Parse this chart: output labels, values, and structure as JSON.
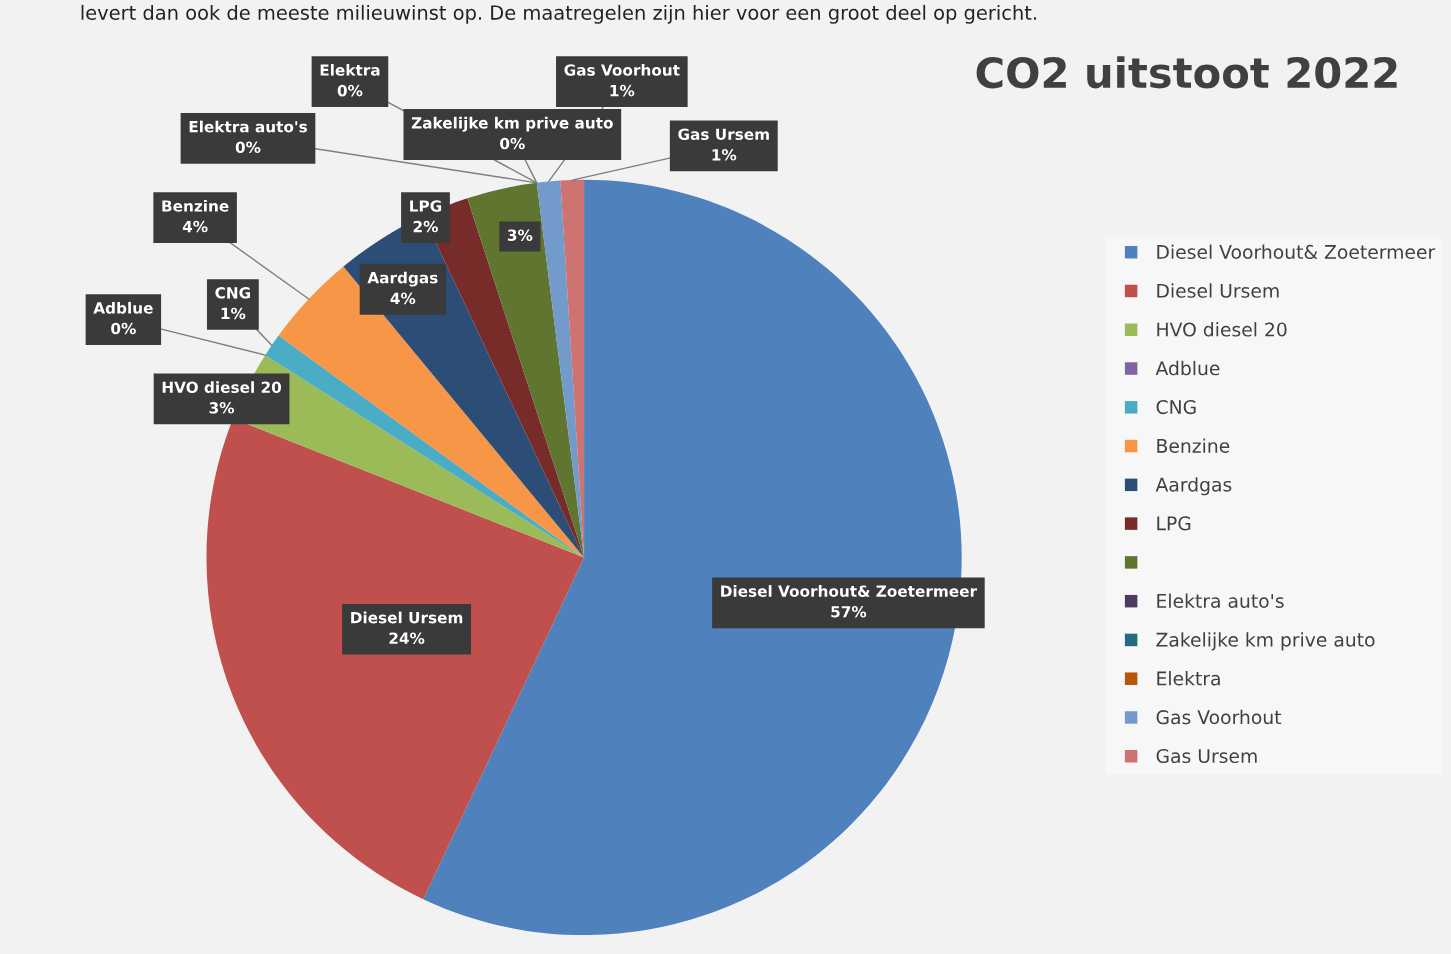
{
  "chart_data": {
    "type": "pie",
    "title": "CO2 uitstoot 2022",
    "categories": [
      "Diesel Voorhout& Zoetermeer",
      "Diesel Ursem",
      "HVO diesel 20",
      "Adblue",
      "CNG",
      "Benzine",
      "Aardgas",
      "LPG",
      null,
      "Elektra auto's",
      "Zakelijke km prive auto",
      "Elektra",
      "Gas Voorhout",
      "Gas Ursem"
    ],
    "values": [
      57,
      24,
      3,
      0,
      1,
      4,
      4,
      2,
      3,
      0,
      0,
      0,
      1,
      1
    ],
    "value_labels": [
      "57%",
      "24%",
      "3%",
      "0%",
      "1%",
      "4%",
      "4%",
      "2%",
      "3%",
      "0%",
      "0%",
      "0%",
      "1%",
      "1%"
    ],
    "colors": [
      "#4f81bd",
      "#c0504d",
      "#9bbb59",
      "#8064a2",
      "#4bacc6",
      "#f79646",
      "#2c4d75",
      "#772c2a",
      "#5f7530",
      "#4d3b62",
      "#276a7c",
      "#b65708",
      "#729aca",
      "#cd7371"
    ],
    "legend": "right",
    "annotations": [
      "levert dan ook de meeste milieuwinst op. De maatregelen zijn hier voor een groot deel op gericht."
    ]
  }
}
